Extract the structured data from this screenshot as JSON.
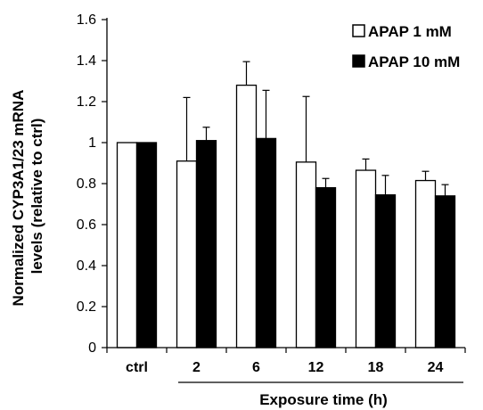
{
  "chart_data": {
    "type": "bar",
    "title": "",
    "ylabel_line1": "Normalized CYP3A1/23 mRNA",
    "ylabel_line2": "levels (relative to ctrl)",
    "xlabel": "Exposure time (h)",
    "categories": [
      "ctrl",
      "2",
      "6",
      "12",
      "18",
      "24"
    ],
    "y_ticks": [
      "0",
      "0.2",
      "0.4",
      "0.6",
      "0.8",
      "1",
      "1.2",
      "1.4",
      "1.6"
    ],
    "ylim": [
      0,
      1.6
    ],
    "grid": false,
    "legend_position": "top-right",
    "series": [
      {
        "name": "APAP 1 mM",
        "fill": "#ffffff",
        "values": [
          1.0,
          0.91,
          1.28,
          0.905,
          0.865,
          0.815
        ],
        "errors": [
          0,
          0.31,
          0.115,
          0.32,
          0.055,
          0.045
        ]
      },
      {
        "name": "APAP 10 mM",
        "fill": "#000000",
        "values": [
          1.0,
          1.01,
          1.02,
          0.78,
          0.745,
          0.74
        ],
        "errors": [
          0,
          0.065,
          0.235,
          0.045,
          0.095,
          0.055
        ]
      }
    ]
  }
}
